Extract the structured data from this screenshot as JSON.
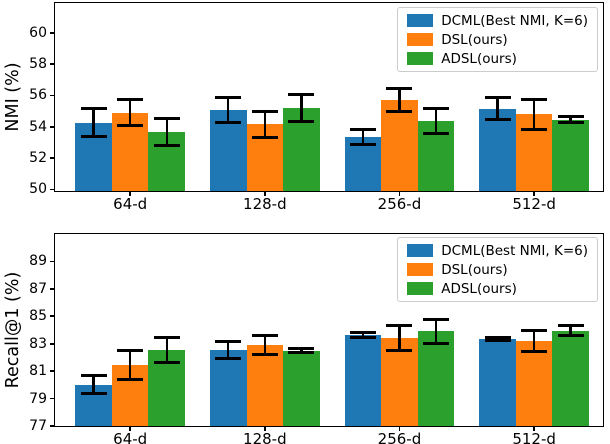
{
  "chart_data": [
    {
      "type": "bar",
      "title": "",
      "ylabel": "NMI (%)",
      "xlabel": "",
      "categories": [
        "64-d",
        "128-d",
        "256-d",
        "512-d"
      ],
      "series": [
        {
          "name": "DCML(Best NMI, K=6)",
          "color": "#1f77b4",
          "values": [
            54.25,
            55.1,
            53.35,
            55.15
          ],
          "errors": [
            0.9,
            0.8,
            0.45,
            0.7
          ]
        },
        {
          "name": "DSL(ours)",
          "color": "#ff7f0e",
          "values": [
            54.9,
            54.15,
            55.7,
            54.8
          ],
          "errors": [
            0.85,
            0.85,
            0.75,
            0.95
          ]
        },
        {
          "name": "ADSL(ours)",
          "color": "#2ca02c",
          "values": [
            53.65,
            55.2,
            54.35,
            54.45
          ],
          "errors": [
            0.85,
            0.85,
            0.8,
            0.2
          ]
        }
      ],
      "ylim": [
        49.9,
        61.9
      ],
      "yticks": [
        50,
        52,
        54,
        56,
        58,
        60
      ],
      "legend_position": "upper right",
      "grid": false,
      "error_bar_color": "#000000"
    },
    {
      "type": "bar",
      "title": "",
      "ylabel": "Recall@1 (%)",
      "xlabel": "",
      "categories": [
        "64-d",
        "128-d",
        "256-d",
        "512-d"
      ],
      "series": [
        {
          "name": "DCML(Best NMI, K=6)",
          "color": "#1f77b4",
          "values": [
            80.0,
            82.55,
            83.65,
            83.35
          ],
          "errors": [
            0.65,
            0.6,
            0.2,
            0.1
          ]
        },
        {
          "name": "DSL(ours)",
          "color": "#ff7f0e",
          "values": [
            81.45,
            82.9,
            83.4,
            83.2
          ],
          "errors": [
            1.05,
            0.7,
            0.9,
            0.8
          ]
        },
        {
          "name": "ADSL(ours)",
          "color": "#2ca02c",
          "values": [
            82.55,
            82.5,
            83.9,
            83.95
          ],
          "errors": [
            0.9,
            0.15,
            0.85,
            0.35
          ]
        }
      ],
      "ylim": [
        77.0,
        91.0
      ],
      "yticks": [
        77,
        79,
        81,
        83,
        85,
        87,
        89
      ],
      "legend_position": "upper right",
      "grid": false,
      "error_bar_color": "#000000"
    }
  ]
}
